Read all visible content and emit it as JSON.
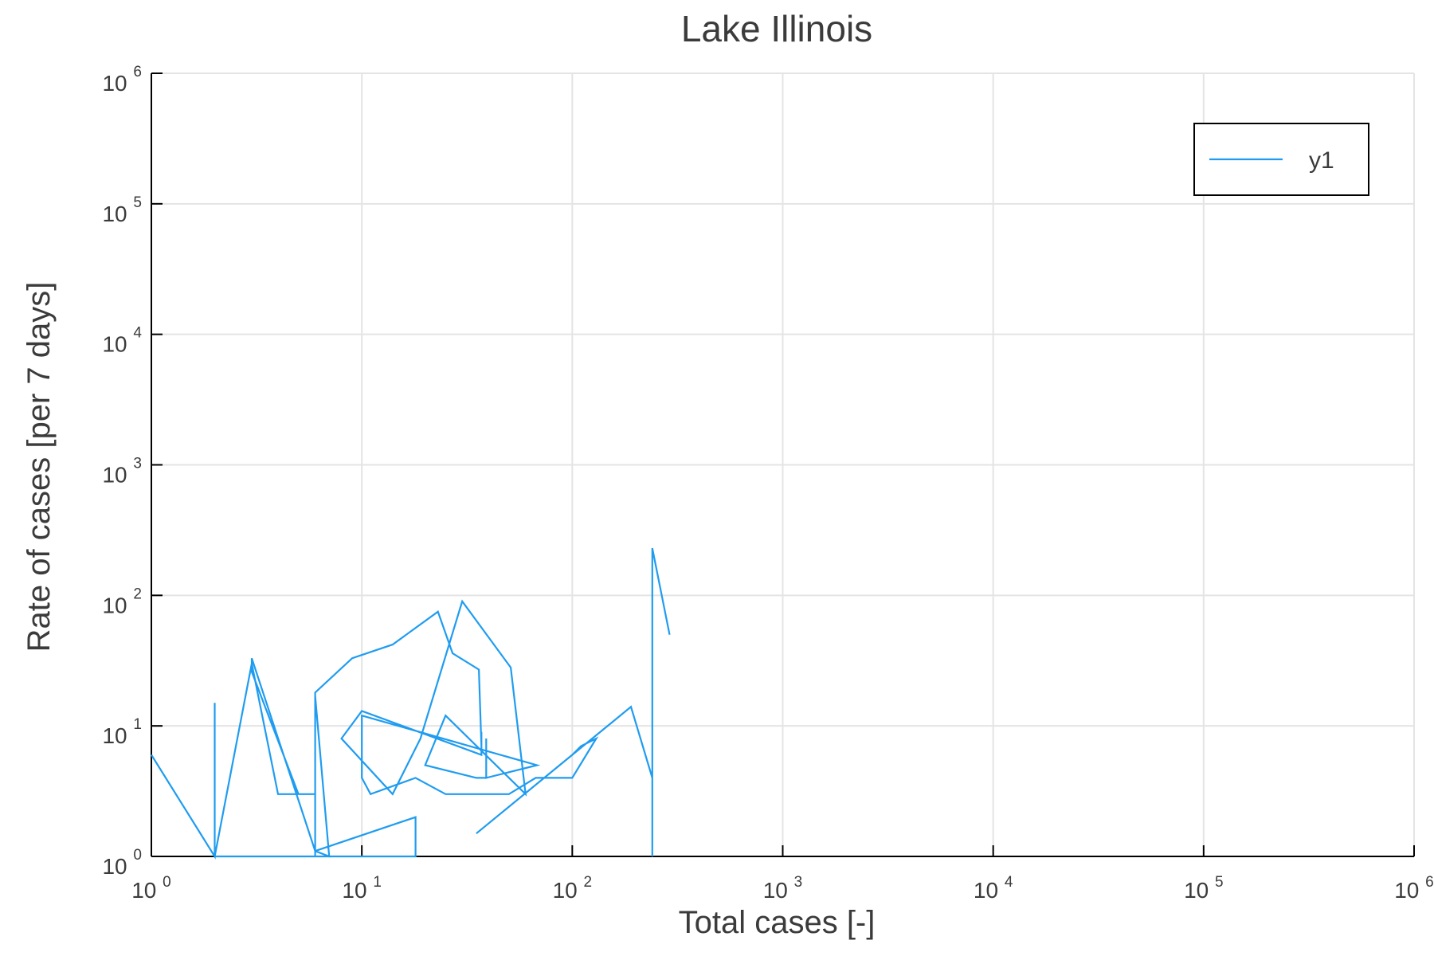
{
  "chart_data": {
    "type": "line",
    "title": "Lake Illinois",
    "xlabel": "Total cases [-]",
    "ylabel": "Rate of cases [per 7 days]",
    "xscale": "log",
    "yscale": "log",
    "xlim": [
      1,
      1000000
    ],
    "ylim": [
      1,
      1000000
    ],
    "grid": true,
    "legend_position": "top-right",
    "x_ticks": [
      {
        "value": 1,
        "base": "10",
        "exp": "0"
      },
      {
        "value": 10,
        "base": "10",
        "exp": "1"
      },
      {
        "value": 100,
        "base": "10",
        "exp": "2"
      },
      {
        "value": 1000,
        "base": "10",
        "exp": "3"
      },
      {
        "value": 10000,
        "base": "10",
        "exp": "4"
      },
      {
        "value": 100000,
        "base": "10",
        "exp": "5"
      },
      {
        "value": 1000000,
        "base": "10",
        "exp": "6"
      }
    ],
    "y_ticks": [
      {
        "value": 1,
        "base": "10",
        "exp": "0"
      },
      {
        "value": 10,
        "base": "10",
        "exp": "1"
      },
      {
        "value": 100,
        "base": "10",
        "exp": "2"
      },
      {
        "value": 1000,
        "base": "10",
        "exp": "3"
      },
      {
        "value": 10000,
        "base": "10",
        "exp": "4"
      },
      {
        "value": 100000,
        "base": "10",
        "exp": "5"
      },
      {
        "value": 1000000,
        "base": "10",
        "exp": "6"
      }
    ],
    "series": [
      {
        "name": "y1",
        "color": "#1f9cf0",
        "x": [
          1,
          2,
          2,
          2,
          2,
          3,
          4,
          6,
          6,
          7,
          6,
          6,
          5,
          3,
          3,
          6,
          6,
          18,
          18,
          6,
          4,
          2,
          3,
          4,
          6,
          6,
          9,
          14,
          23,
          27,
          36,
          37,
          37,
          37,
          10,
          8,
          14,
          19,
          30,
          51,
          60,
          25,
          20,
          35,
          39,
          39,
          39,
          68,
          10,
          10,
          11,
          18,
          25,
          50,
          67,
          100,
          130,
          110,
          100,
          35,
          190,
          240,
          240,
          240,
          240,
          240,
          290
        ],
        "y": [
          6,
          1,
          15,
          1,
          1,
          1,
          1,
          1,
          17,
          1,
          1.1,
          3,
          3,
          26,
          33,
          1.1,
          1.1,
          2,
          1,
          1,
          1,
          1,
          30,
          3,
          3,
          18,
          33,
          42,
          75,
          36,
          27,
          7,
          9,
          6,
          13,
          8,
          3,
          8,
          90,
          28,
          3,
          12,
          5,
          4,
          4,
          8,
          4,
          5,
          12,
          4,
          3,
          4,
          3,
          3,
          4,
          4,
          8,
          7,
          6,
          1.5,
          14,
          4,
          1,
          1,
          27,
          230,
          50
        ]
      }
    ]
  }
}
